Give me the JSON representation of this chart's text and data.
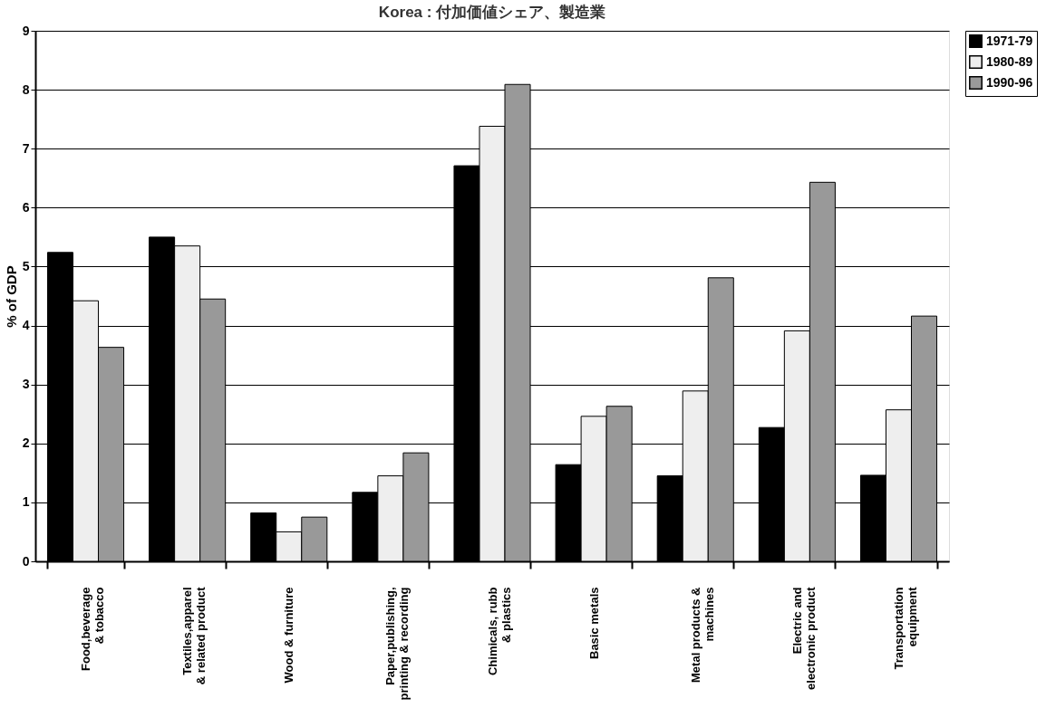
{
  "chart_data": {
    "type": "bar",
    "title": "Korea : 付加価値シェア、製造業",
    "ylabel": "% of GDP",
    "categories": [
      "Food,beverage\n& tobacco",
      "Textiles,apparel\n& related product",
      "Wood & furniture",
      "Paper,publishing,\nprinting & recording",
      "Chimicals, rubb\n& plastics",
      "Basic metals",
      "Metal products &\nmachines",
      "Electric and\nelectronic product",
      "Transportation\nequipment"
    ],
    "series": [
      {
        "name": "1971-79",
        "color": "#000000",
        "values": [
          5.24,
          5.5,
          0.82,
          1.17,
          6.71,
          1.64,
          1.45,
          2.27,
          1.46
        ]
      },
      {
        "name": "1980-89",
        "color": "#eeeeee",
        "values": [
          4.42,
          5.35,
          0.5,
          1.45,
          7.38,
          2.46,
          2.89,
          3.91,
          2.57
        ]
      },
      {
        "name": "1990-96",
        "color": "#999999",
        "values": [
          3.63,
          4.45,
          0.75,
          1.84,
          8.09,
          2.63,
          4.81,
          6.43,
          4.16
        ]
      }
    ],
    "ylim": [
      0,
      9
    ],
    "yticks": [
      0,
      1,
      2,
      3,
      4,
      5,
      6,
      7,
      8,
      9
    ],
    "grid": "y",
    "legend": "top right"
  }
}
